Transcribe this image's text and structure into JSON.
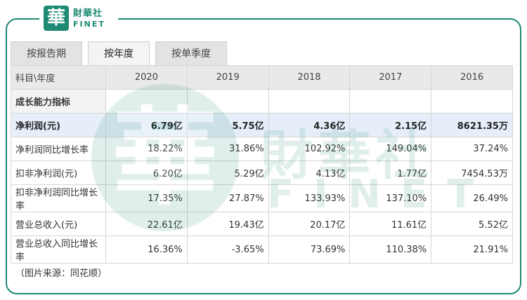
{
  "logo": {
    "mark": "華",
    "cn": "財華社",
    "en": "FINET"
  },
  "tabs": [
    {
      "label": "按报告期"
    },
    {
      "label": "按年度"
    },
    {
      "label": "按单季度"
    }
  ],
  "table": {
    "corner": "科目\\年度",
    "years": [
      "2020",
      "2019",
      "2018",
      "2017",
      "2016"
    ],
    "section": "成长能力指标",
    "rows": [
      {
        "label": "净利润(元)",
        "values": [
          "6.79亿",
          "5.75亿",
          "4.36亿",
          "2.15亿",
          "8621.35万"
        ]
      },
      {
        "label": "净利润同比增长率",
        "values": [
          "18.22%",
          "31.86%",
          "102.92%",
          "149.04%",
          "37.24%"
        ]
      },
      {
        "label": "扣非净利润(元)",
        "values": [
          "6.20亿",
          "5.29亿",
          "4.13亿",
          "1.77亿",
          "7454.53万"
        ]
      },
      {
        "label": "扣非净利润同比增长率",
        "values": [
          "17.35%",
          "27.87%",
          "133.93%",
          "137.10%",
          "26.49%"
        ]
      },
      {
        "label": "营业总收入(元)",
        "values": [
          "22.61亿",
          "19.43亿",
          "20.17亿",
          "11.61亿",
          "5.52亿"
        ]
      },
      {
        "label": "营业总收入同比增长率",
        "values": [
          "16.36%",
          "-3.65%",
          "73.69%",
          "110.38%",
          "21.91%"
        ]
      }
    ]
  },
  "watermark": {
    "mark": "華",
    "cn": "財華社",
    "en": "FINET"
  },
  "source": "（图片来源：同花顺）",
  "colors": {
    "brand": "#1e8a73",
    "highlight_row": "#e6eff9"
  }
}
